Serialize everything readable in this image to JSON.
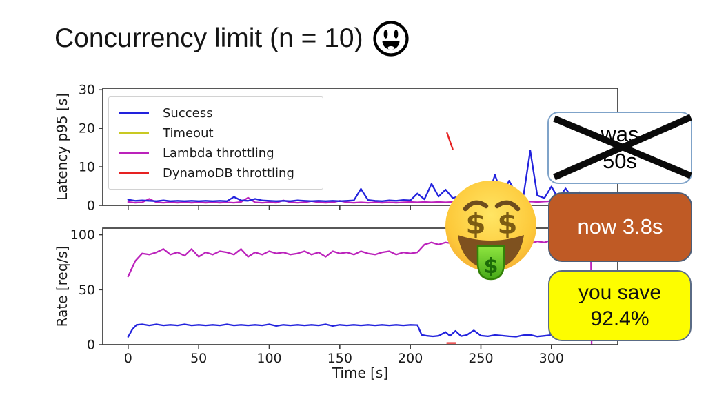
{
  "slide": {
    "title": "Concurrency limit (n = 10)",
    "title_emoji": "smiling-face-open-mouth",
    "overlay_emoji": "money-mouth-face"
  },
  "annotations": {
    "was": {
      "line1": "was",
      "line2": "50s",
      "fill": "#ffffff",
      "border": "#7fa3c9",
      "text_color": "#000000",
      "crossed_out": true,
      "cross_color": "#0a0a0a"
    },
    "now": {
      "text": "now 3.8s",
      "fill": "#bf5a25",
      "border": "#4d5e78",
      "text_color": "#ffffff"
    },
    "save": {
      "line1": "you save",
      "line2": "92.4%",
      "fill": "#fdfd00",
      "border": "#5a6b85",
      "text_color": "#111111"
    }
  },
  "chart_data": [
    {
      "type": "line",
      "title": "",
      "xlabel": "",
      "ylabel": "Latency p95 [s]",
      "xlim": [
        -18,
        347
      ],
      "ylim": [
        0,
        30.4
      ],
      "xticks": [
        0,
        50,
        100,
        150,
        200,
        250,
        300
      ],
      "yticks": [
        0,
        10,
        20,
        30
      ],
      "show_xtick_labels": false,
      "grid": false,
      "legend": {
        "position": "upper left",
        "entries": [
          {
            "label": "Success",
            "color": "#2222dd"
          },
          {
            "label": "Timeout",
            "color": "#c9c922"
          },
          {
            "label": "Lambda throttling",
            "color": "#bb22bb"
          },
          {
            "label": "DynamoDB throttling",
            "color": "#e62222"
          }
        ]
      },
      "series": [
        {
          "name": "Lambda throttling",
          "color": "#bb22bb",
          "x": [
            0,
            5,
            10,
            15,
            20,
            25,
            30,
            35,
            40,
            45,
            50,
            55,
            60,
            65,
            70,
            75,
            80,
            85,
            90,
            95,
            100,
            105,
            110,
            115,
            120,
            125,
            130,
            135,
            140,
            145,
            150,
            155,
            160,
            165,
            170,
            175,
            180,
            185,
            190,
            195,
            200,
            205,
            210,
            215,
            220,
            225,
            230,
            235,
            240,
            245,
            250,
            255,
            260,
            265,
            270,
            275,
            280,
            285,
            290,
            295,
            300,
            305,
            310,
            315,
            320,
            325,
            330
          ],
          "y": [
            0.9,
            0.7,
            0.8,
            1.7,
            0.8,
            0.7,
            0.8,
            0.7,
            0.8,
            0.7,
            0.8,
            0.7,
            0.8,
            0.7,
            0.8,
            0.7,
            0.9,
            2.0,
            0.8,
            0.7,
            0.8,
            0.7,
            1.3,
            0.8,
            0.7,
            0.8,
            1.1,
            0.8,
            0.7,
            0.8,
            1.2,
            0.8,
            0.7,
            0.8,
            0.7,
            0.8,
            0.7,
            0.8,
            0.7,
            0.8,
            0.9,
            0.8,
            0.9,
            0.8,
            0.9,
            0.8,
            0.9,
            0.8,
            0.9,
            0.8,
            0.9,
            0.8,
            0.9,
            0.8,
            0.9,
            0.8,
            0.9,
            1.0,
            0.9,
            1.0,
            1.1,
            1.0,
            1.1,
            1.2,
            1.3,
            1.4,
            1.5
          ]
        },
        {
          "name": "Success",
          "color": "#2222dd",
          "x": [
            0,
            5,
            10,
            15,
            20,
            25,
            30,
            35,
            40,
            45,
            50,
            55,
            60,
            65,
            70,
            75,
            80,
            85,
            90,
            95,
            100,
            105,
            110,
            115,
            120,
            125,
            130,
            135,
            140,
            145,
            150,
            155,
            160,
            165,
            170,
            175,
            180,
            185,
            190,
            195,
            200,
            205,
            210,
            215,
            220,
            225,
            230,
            235,
            240,
            245,
            250,
            255,
            260,
            265,
            270,
            275,
            280,
            285,
            290,
            295,
            300,
            305,
            310,
            315,
            320,
            325,
            330
          ],
          "y": [
            1.5,
            1.2,
            1.3,
            1.2,
            1.1,
            1.3,
            1.1,
            1.2,
            1.1,
            1.2,
            1.1,
            1.2,
            1.1,
            1.2,
            1.1,
            2.2,
            1.3,
            1.2,
            1.7,
            1.3,
            1.2,
            1.1,
            1.2,
            1.1,
            1.3,
            1.2,
            1.1,
            1.2,
            1.1,
            1.2,
            1.1,
            1.2,
            1.3,
            4.3,
            1.4,
            1.2,
            1.1,
            1.3,
            1.2,
            1.4,
            1.3,
            3.1,
            1.6,
            5.6,
            2.3,
            4.1,
            1.9,
            2.4,
            1.7,
            2.1,
            1.8,
            2.3,
            7.9,
            2.6,
            6.4,
            2.9,
            2.1,
            14.2,
            2.6,
            1.9,
            4.9,
            1.7,
            4.4,
            1.9,
            3.4,
            1.5,
            1.4
          ]
        },
        {
          "name": "Timeout",
          "color": "#c9c922",
          "x": [],
          "y": []
        },
        {
          "name": "DynamoDB throttling",
          "color": "#e62222",
          "x": [
            226,
            230
          ],
          "y": [
            18.8,
            14.6
          ]
        }
      ]
    },
    {
      "type": "line",
      "title": "",
      "xlabel": "Time [s]",
      "ylabel": "Rate [req/s]",
      "xlim": [
        -18,
        347
      ],
      "ylim": [
        0,
        106
      ],
      "xticks": [
        0,
        50,
        100,
        150,
        200,
        250,
        300
      ],
      "yticks": [
        0,
        50,
        100
      ],
      "show_xtick_labels": true,
      "grid": false,
      "series": [
        {
          "name": "Lambda throttling",
          "color": "#bb22bb",
          "x": [
            0,
            5,
            10,
            15,
            20,
            25,
            30,
            35,
            40,
            45,
            50,
            55,
            60,
            65,
            70,
            75,
            80,
            85,
            90,
            95,
            100,
            105,
            110,
            115,
            120,
            125,
            130,
            135,
            140,
            145,
            150,
            155,
            160,
            165,
            170,
            175,
            180,
            185,
            190,
            195,
            200,
            205,
            210,
            215,
            220,
            225,
            230,
            235,
            240,
            245,
            250,
            255,
            260,
            265,
            270,
            275,
            280,
            285,
            290,
            295,
            300,
            305,
            310,
            315,
            320,
            325,
            327,
            328,
            328.5
          ],
          "y": [
            62,
            76,
            83,
            82,
            84,
            87,
            82,
            84,
            81,
            87,
            80,
            84,
            82,
            85,
            84,
            82,
            87,
            80,
            84,
            82,
            85,
            83,
            84,
            82,
            83,
            85,
            82,
            84,
            80,
            85,
            83,
            84,
            82,
            85,
            83,
            82,
            84,
            85,
            82,
            84,
            83,
            84,
            91,
            93,
            91,
            93,
            92,
            93,
            91,
            92,
            93,
            92,
            91,
            93,
            92,
            91,
            93,
            92,
            94,
            93,
            95,
            93,
            94,
            95,
            93,
            94,
            93,
            92,
            0
          ]
        },
        {
          "name": "Success",
          "color": "#2222dd",
          "x": [
            0,
            3,
            6,
            10,
            15,
            20,
            25,
            30,
            35,
            40,
            45,
            50,
            55,
            60,
            65,
            70,
            75,
            80,
            85,
            90,
            95,
            100,
            105,
            110,
            115,
            120,
            125,
            130,
            135,
            140,
            145,
            150,
            155,
            160,
            165,
            170,
            175,
            180,
            185,
            190,
            195,
            200,
            205,
            208,
            212,
            216,
            220,
            225,
            228,
            232,
            236,
            240,
            245,
            250,
            255,
            260,
            265,
            270,
            275,
            280,
            285,
            290,
            295,
            300,
            305,
            310,
            315,
            320,
            325,
            330
          ],
          "y": [
            7,
            14,
            18,
            18.5,
            17.5,
            18.5,
            17.5,
            18,
            17.5,
            18.5,
            17.5,
            18,
            17.5,
            18,
            17.5,
            18.5,
            17.5,
            18,
            17.5,
            18,
            17.5,
            18.5,
            17,
            18,
            17.5,
            18,
            17.5,
            18,
            17.5,
            18.5,
            17,
            18,
            17.5,
            18,
            17.5,
            18,
            17.5,
            18,
            17.5,
            18,
            17.5,
            18,
            17.8,
            9,
            8,
            7.5,
            8,
            11.5,
            8,
            12.5,
            7.8,
            8.8,
            13,
            8.2,
            7.6,
            8.8,
            8.2,
            7.6,
            7.2,
            8.6,
            9,
            7.4,
            8,
            8.8,
            7.8,
            8.4,
            7.8,
            7.2,
            7.8,
            7.6
          ]
        },
        {
          "name": "DynamoDB throttling",
          "color": "#e62222",
          "x": [
            226,
            232
          ],
          "y": [
            1.5,
            1.5
          ]
        }
      ]
    }
  ]
}
